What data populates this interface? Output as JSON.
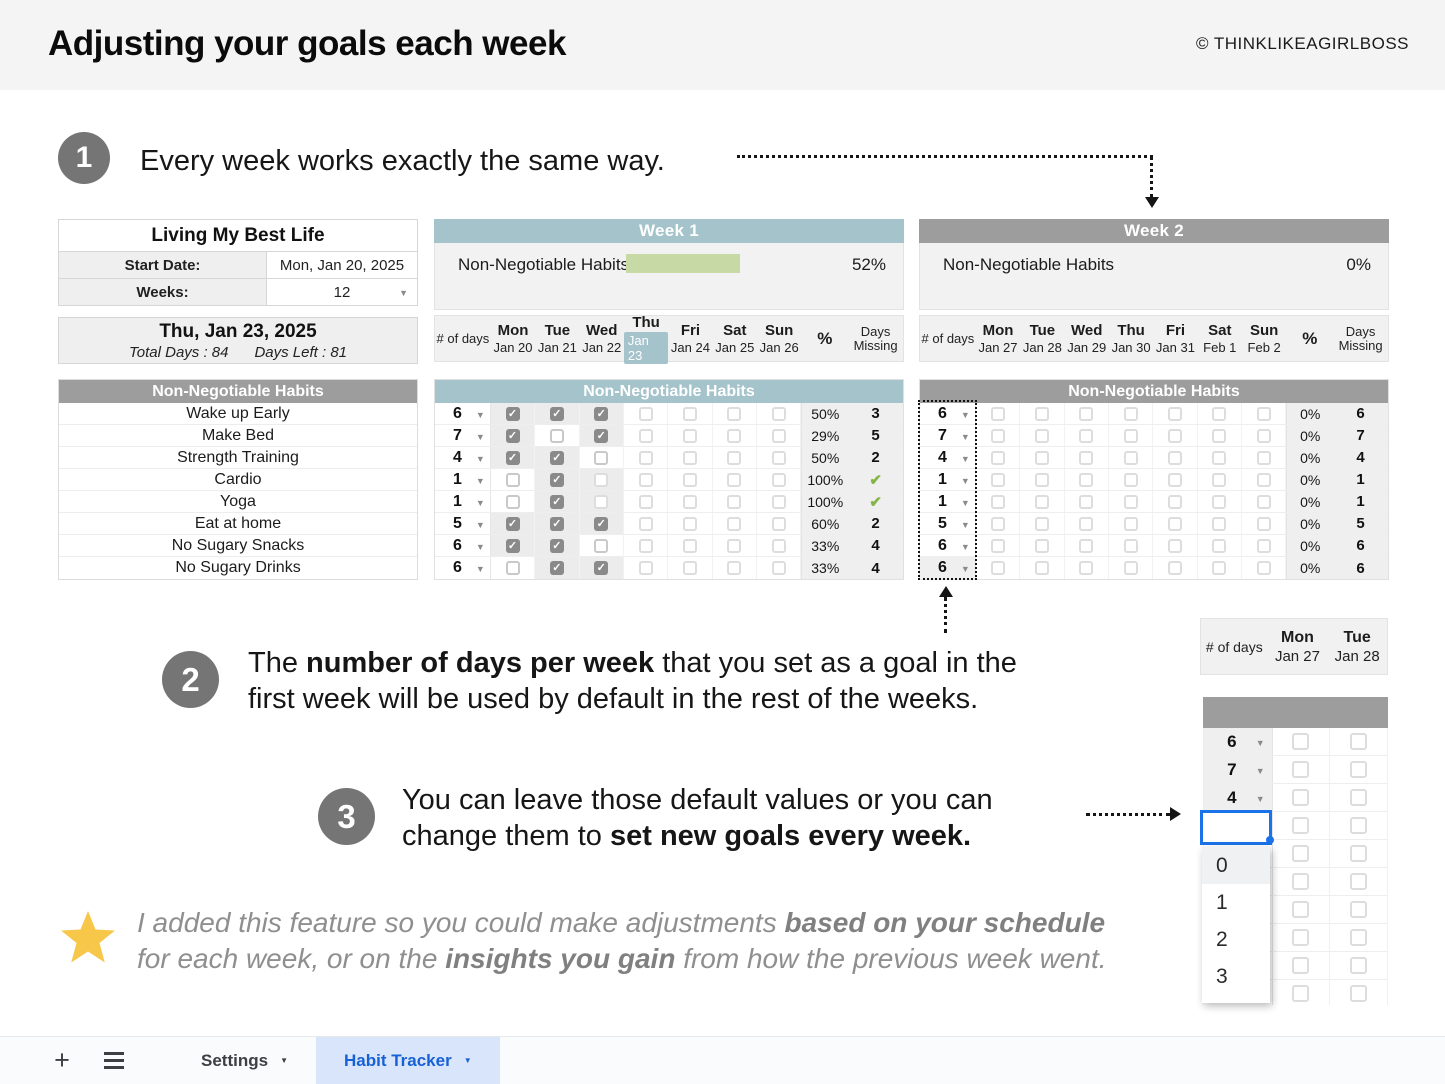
{
  "header": {
    "title": "Adjusting your goals each week",
    "credit": "© THINKLIKEAGIRLBOSS"
  },
  "colors": {
    "teal": "#a4c3cb",
    "gray_header": "#9d9d9d",
    "green_bar": "#c7d9a4",
    "green_check": "#84b445",
    "selection_blue": "#1a73e8",
    "tab_blue": "#1661d4",
    "tab_blue_bg": "#d9e5fa"
  },
  "steps": {
    "one": {
      "num": "1",
      "lines": [
        [
          {
            "t": "Every week works exactly the same way."
          }
        ]
      ]
    },
    "two": {
      "num": "2",
      "lines": [
        [
          {
            "t": "The "
          },
          {
            "t": "number of days per week",
            "b": true
          },
          {
            "t": " that you set as a goal in the"
          }
        ],
        [
          {
            "t": "first week will be used by default in the rest of the weeks."
          }
        ]
      ]
    },
    "three": {
      "num": "3",
      "lines": [
        [
          {
            "t": "You can leave those default values or you can"
          }
        ],
        [
          {
            "t": "change them to "
          },
          {
            "t": "set new goals every week.",
            "b": true
          }
        ]
      ]
    }
  },
  "note": {
    "lines": [
      [
        {
          "t": "I added this feature so you could make adjustments "
        },
        {
          "t": "based on your schedule",
          "b": true
        }
      ],
      [
        {
          "t": "for each week, or on the "
        },
        {
          "t": "insights you gain",
          "b": true
        },
        {
          "t": " from how the previous week went."
        }
      ]
    ]
  },
  "info_table": {
    "title": "Living My Best Life",
    "rows": [
      {
        "label": "Start Date:",
        "value": "Mon, Jan 20, 2025",
        "dropdown": false
      },
      {
        "label": "Weeks:",
        "value": "12",
        "dropdown": true
      }
    ]
  },
  "date_summary": {
    "date": "Thu, Jan 23, 2025",
    "total": "Total Days : 84",
    "left": "Days Left : 81"
  },
  "habit_list": {
    "header": "Non-Negotiable Habits",
    "items": [
      "Wake up Early",
      "Make Bed",
      "Strength Training",
      "Cardio",
      "Yoga",
      "Eat at home",
      "No Sugary Snacks",
      "No Sugary Drinks"
    ]
  },
  "weeks": [
    {
      "title": "Week 1",
      "accent": "teal",
      "summary": {
        "label": "Non-Negotiable Habits",
        "pct": "52%",
        "bar": true
      },
      "num_header": "# of days",
      "pct_header": "%",
      "missing_header": "Days Missing",
      "days": [
        {
          "dow": "Mon",
          "date": "Jan 20",
          "today": false
        },
        {
          "dow": "Tue",
          "date": "Jan 21",
          "today": false
        },
        {
          "dow": "Wed",
          "date": "Jan 22",
          "today": false
        },
        {
          "dow": "Thu",
          "date": "Jan 23",
          "today": true
        },
        {
          "dow": "Fri",
          "date": "Jan 24",
          "today": false
        },
        {
          "dow": "Sat",
          "date": "Jan 25",
          "today": false
        },
        {
          "dow": "Sun",
          "date": "Jan 26",
          "today": false
        }
      ],
      "grid_title": "Non-Negotiable Habits",
      "rows": [
        {
          "goal": "6",
          "cells": [
            "c",
            "c",
            "c",
            "f",
            "f",
            "f",
            "f"
          ],
          "pct": "50%",
          "missing": "3"
        },
        {
          "goal": "7",
          "cells": [
            "c",
            "m",
            "c",
            "f",
            "f",
            "f",
            "f"
          ],
          "pct": "29%",
          "missing": "5"
        },
        {
          "goal": "4",
          "cells": [
            "c",
            "c",
            "m",
            "f",
            "f",
            "f",
            "f"
          ],
          "pct": "50%",
          "missing": "2"
        },
        {
          "goal": "1",
          "cells": [
            "m",
            "c",
            "g",
            "f",
            "f",
            "f",
            "f"
          ],
          "pct": "100%",
          "missing": "check"
        },
        {
          "goal": "1",
          "cells": [
            "m",
            "c",
            "g",
            "f",
            "f",
            "f",
            "f"
          ],
          "pct": "100%",
          "missing": "check"
        },
        {
          "goal": "5",
          "cells": [
            "c",
            "c",
            "c",
            "f",
            "f",
            "f",
            "f"
          ],
          "pct": "60%",
          "missing": "2"
        },
        {
          "goal": "6",
          "cells": [
            "c",
            "c",
            "m",
            "f",
            "f",
            "f",
            "f"
          ],
          "pct": "33%",
          "missing": "4"
        },
        {
          "goal": "6",
          "cells": [
            "m",
            "c",
            "c",
            "f",
            "f",
            "f",
            "f"
          ],
          "pct": "33%",
          "missing": "4"
        }
      ],
      "selected_goal_column": false
    },
    {
      "title": "Week 2",
      "accent": "gray",
      "summary": {
        "label": "Non-Negotiable Habits",
        "pct": "0%",
        "bar": false
      },
      "num_header": "# of days",
      "pct_header": "%",
      "missing_header": "Days Missing",
      "days": [
        {
          "dow": "Mon",
          "date": "Jan 27",
          "today": false
        },
        {
          "dow": "Tue",
          "date": "Jan 28",
          "today": false
        },
        {
          "dow": "Wed",
          "date": "Jan 29",
          "today": false
        },
        {
          "dow": "Thu",
          "date": "Jan 30",
          "today": false
        },
        {
          "dow": "Fri",
          "date": "Jan 31",
          "today": false
        },
        {
          "dow": "Sat",
          "date": "Feb 1",
          "today": false
        },
        {
          "dow": "Sun",
          "date": "Feb 2",
          "today": false
        }
      ],
      "grid_title": "Non-Negotiable Habits",
      "rows": [
        {
          "goal": "6",
          "cells": [
            "f",
            "f",
            "f",
            "f",
            "f",
            "f",
            "f"
          ],
          "pct": "0%",
          "missing": "6"
        },
        {
          "goal": "7",
          "cells": [
            "f",
            "f",
            "f",
            "f",
            "f",
            "f",
            "f"
          ],
          "pct": "0%",
          "missing": "7"
        },
        {
          "goal": "4",
          "cells": [
            "f",
            "f",
            "f",
            "f",
            "f",
            "f",
            "f"
          ],
          "pct": "0%",
          "missing": "4"
        },
        {
          "goal": "1",
          "cells": [
            "f",
            "f",
            "f",
            "f",
            "f",
            "f",
            "f"
          ],
          "pct": "0%",
          "missing": "1"
        },
        {
          "goal": "1",
          "cells": [
            "f",
            "f",
            "f",
            "f",
            "f",
            "f",
            "f"
          ],
          "pct": "0%",
          "missing": "1"
        },
        {
          "goal": "5",
          "cells": [
            "f",
            "f",
            "f",
            "f",
            "f",
            "f",
            "f"
          ],
          "pct": "0%",
          "missing": "5"
        },
        {
          "goal": "6",
          "cells": [
            "f",
            "f",
            "f",
            "f",
            "f",
            "f",
            "f"
          ],
          "pct": "0%",
          "missing": "6"
        },
        {
          "goal": "6",
          "cells": [
            "f",
            "f",
            "f",
            "f",
            "f",
            "f",
            "f"
          ],
          "pct": "0%",
          "missing": "6",
          "num_gray": true
        }
      ],
      "selected_goal_column": true
    }
  ],
  "mini": {
    "num_header": "# of days",
    "days": [
      {
        "dow": "Mon",
        "date": "Jan 27"
      },
      {
        "dow": "Tue",
        "date": "Jan 28"
      }
    ],
    "goals": [
      "6",
      "7",
      "4"
    ],
    "checkbox_rows": 10,
    "dropdown": {
      "options": [
        "0",
        "1",
        "2",
        "3"
      ],
      "highlighted": "0"
    }
  },
  "tab_bar": {
    "tabs": [
      {
        "label": "Settings",
        "active": false
      },
      {
        "label": "Habit Tracker",
        "active": true
      }
    ]
  }
}
